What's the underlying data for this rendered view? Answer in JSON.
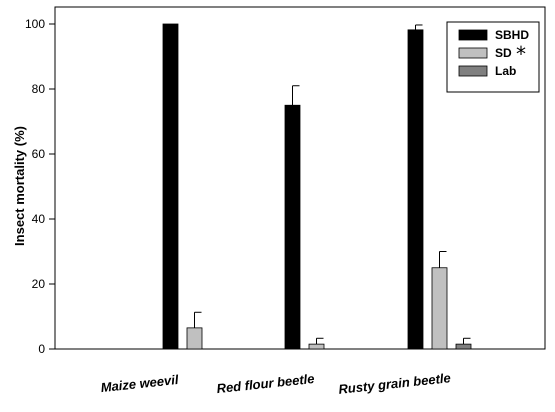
{
  "chart_data": {
    "type": "bar",
    "categories": [
      "Maize weevil",
      "Red flour beetle",
      "Rusty grain beetle"
    ],
    "series": [
      {
        "name": "SBHD",
        "values": [
          100,
          75,
          98.2
        ],
        "errors": [
          0,
          6,
          1.5
        ],
        "color": "#000000"
      },
      {
        "name": "SD",
        "values": [
          6.5,
          1.5,
          25
        ],
        "errors": [
          4.8,
          1.8,
          5
        ],
        "color": "#c0c0c0"
      },
      {
        "name": "Lab",
        "values": [
          0,
          0,
          1.5
        ],
        "errors": [
          0,
          0,
          1.8
        ],
        "color": "#808080"
      }
    ],
    "legend_marks": [
      "",
      "*",
      ""
    ],
    "ylabel": "Insect mortality (%)",
    "xlabel": "",
    "ylim": [
      0,
      100
    ],
    "yticks": [
      0,
      20,
      40,
      60,
      80,
      100
    ],
    "legend_position": "top-right",
    "grid": false
  }
}
